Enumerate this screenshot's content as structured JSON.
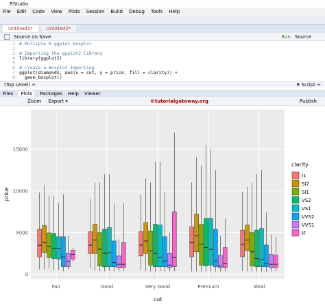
{
  "window": {
    "title": "RStudio"
  },
  "menu": [
    "File",
    "Edit",
    "Code",
    "View",
    "Plots",
    "Session",
    "Build",
    "Debug",
    "Tools",
    "Help"
  ],
  "editor": {
    "tabs": [
      "Untitled1*",
      "Untitled2*"
    ],
    "source_on_save": "Source on Save",
    "run": "Run",
    "source": "Source",
    "lines": [
      {
        "n": 1,
        "code": "# Multiple R ggplot boxplot"
      },
      {
        "n": 2
      },
      {
        "n": 3,
        "code": "# Importing the ggplot2 library"
      },
      {
        "n": 4,
        "code": "library(ggplot2)"
      },
      {
        "n": 5
      },
      {
        "n": 6,
        "code": "# Create a Boxplot Importing"
      },
      {
        "n": 7,
        "code": "ggplot(diamonds, aes(x = cut, y = price, fill = clarity)) +"
      },
      {
        "n": 8,
        "code": "  geom_boxplot()"
      }
    ],
    "status_left": "(Top Level) ÷",
    "status_right": "R Script ÷"
  },
  "plots_pane": {
    "tabs": [
      "Files",
      "Plots",
      "Packages",
      "Help",
      "Viewer"
    ],
    "zoom": "Zoom",
    "export": "Export ▾",
    "publish": "Publish",
    "watermark": "©tutorialgateway.org"
  },
  "chart_data": {
    "type": "boxplot",
    "x_label": "cut",
    "y_label": "price",
    "legend_title": "clarity",
    "categories": [
      "Fair",
      "Good",
      "Very Good",
      "Premium",
      "Ideal"
    ],
    "ylim": [
      -599,
      19748
    ],
    "yticks": [
      0,
      5000,
      10000,
      15000
    ],
    "grid": true,
    "series": [
      {
        "name": "I1",
        "color": "#F8766D",
        "values": [
          [
            584,
            2080,
            3480,
            5400,
            9800
          ],
          [
            710,
            2500,
            3500,
            5100,
            9000
          ],
          [
            550,
            2200,
            3500,
            5100,
            9500
          ],
          [
            340,
            2100,
            3800,
            5700,
            11000
          ],
          [
            410,
            2100,
            3600,
            5300,
            9900
          ]
        ]
      },
      {
        "name": "SI2",
        "color": "#CD9600",
        "values": [
          [
            536,
            2600,
            3810,
            5840,
            10700
          ],
          [
            400,
            2500,
            4100,
            6000,
            11000
          ],
          [
            370,
            2500,
            4000,
            6200,
            11500
          ],
          [
            330,
            2700,
            4600,
            7200,
            14000
          ],
          [
            330,
            2800,
            4100,
            5900,
            10500
          ]
        ]
      },
      {
        "name": "SI1",
        "color": "#7CAE00",
        "values": [
          [
            750,
            2000,
            3340,
            4980,
            9400
          ],
          [
            350,
            1000,
            3000,
            5000,
            11000
          ],
          [
            340,
            1100,
            2800,
            5200,
            11000
          ],
          [
            330,
            1100,
            3600,
            6000,
            13000
          ],
          [
            340,
            1000,
            2700,
            5000,
            11000
          ]
        ]
      },
      {
        "name": "VS2",
        "color": "#00BE67",
        "values": [
          [
            536,
            1900,
            3130,
            4900,
            9300
          ],
          [
            350,
            900,
            2500,
            5400,
            12000
          ],
          [
            340,
            900,
            2500,
            6000,
            13500
          ],
          [
            330,
            1000,
            3200,
            6700,
            15500
          ],
          [
            330,
            900,
            1900,
            5300,
            12000
          ]
        ]
      },
      {
        "name": "VS1",
        "color": "#00BFC4",
        "values": [
          [
            496,
            1800,
            3120,
            4500,
            8500
          ],
          [
            400,
            900,
            2600,
            5600,
            12000
          ],
          [
            350,
            900,
            2000,
            5900,
            13500
          ],
          [
            330,
            1100,
            3000,
            6700,
            15000
          ],
          [
            330,
            900,
            1800,
            5500,
            12500
          ]
        ]
      },
      {
        "name": "VVS2",
        "color": "#00A9FF",
        "values": [
          [
            369,
            900,
            2080,
            4500,
            9600
          ],
          [
            350,
            900,
            1400,
            4000,
            8500
          ],
          [
            340,
            900,
            1600,
            4500,
            9800
          ],
          [
            330,
            900,
            1600,
            5400,
            12500
          ],
          [
            330,
            900,
            1300,
            3500,
            7400
          ]
        ]
      },
      {
        "name": "VVS1",
        "color": "#C77CFF",
        "values": [
          [
            563,
            900,
            1580,
            2500,
            4600
          ],
          [
            350,
            800,
            1200,
            2200,
            4200
          ],
          [
            340,
            800,
            1100,
            2500,
            5000
          ],
          [
            340,
            800,
            1000,
            2300,
            4600
          ],
          [
            330,
            800,
            1200,
            2400,
            4800
          ]
        ]
      },
      {
        "name": "IF",
        "color": "#FF61CC",
        "values": [
          [
            1500,
            1800,
            2400,
            2900,
            3200
          ],
          [
            400,
            800,
            1200,
            3800,
            8500
          ],
          [
            370,
            900,
            2000,
            7500,
            17000
          ],
          [
            340,
            800,
            1300,
            3200,
            6700
          ],
          [
            330,
            800,
            1200,
            2300,
            4500
          ]
        ]
      }
    ]
  }
}
